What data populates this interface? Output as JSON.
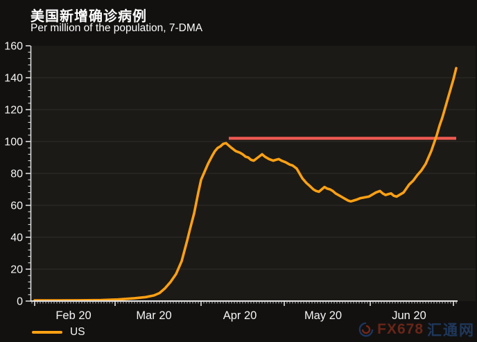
{
  "page": {
    "background": "#121110"
  },
  "header": {
    "title": "美国新增确诊病例",
    "subtitle": "Per million of the population, 7-DMA"
  },
  "legend": {
    "items": [
      {
        "label": "US",
        "color": "#ffa113"
      }
    ]
  },
  "watermark": {
    "text_primary": "FX678",
    "text_secondary": "汇通网"
  },
  "chart_data": {
    "type": "line",
    "title": "美国新增确诊病例",
    "subtitle": "Per million of the population, 7-DMA",
    "xlabel": "",
    "ylabel": "",
    "ylim": [
      0,
      160
    ],
    "y_major_tick_step": 20,
    "y_minor_tick_step": 4,
    "y_tick_labels": [
      "0",
      "20",
      "40",
      "60",
      "80",
      "100",
      "120",
      "140",
      "160"
    ],
    "x_tick_labels": [
      "Feb 20",
      "Mar 20",
      "Apr 20",
      "May 20",
      "Jun 20"
    ],
    "x_label_days": [
      14,
      43,
      74,
      104,
      135
    ],
    "x_month_start_days": [
      0,
      29,
      60,
      90,
      121,
      151
    ],
    "x_range_days": [
      0,
      152
    ],
    "grid": "faint horizontal gridlines at each 20-unit level",
    "legend_position": "bottom-left",
    "colors": {
      "series": "#ffa113",
      "reference": "#ef5a52",
      "axis": "#dcdcdc",
      "grid": "#2a2723",
      "plot_bg": "#1c1a17",
      "page_bg": "#121110",
      "text": "#f5f5f5"
    },
    "reference_line": {
      "value": 102,
      "start_day": 70,
      "end_day": 152,
      "color": "#ef5a52"
    },
    "series": [
      {
        "name": "US",
        "color": "#ffa113",
        "points": [
          [
            0,
            0.4
          ],
          [
            8,
            0.4
          ],
          [
            16,
            0.5
          ],
          [
            24,
            0.6
          ],
          [
            30,
            1
          ],
          [
            36,
            1.8
          ],
          [
            40,
            2.5
          ],
          [
            43,
            3.5
          ],
          [
            45,
            5
          ],
          [
            47,
            8
          ],
          [
            49,
            12
          ],
          [
            51,
            17
          ],
          [
            53,
            25
          ],
          [
            55,
            38
          ],
          [
            56,
            45
          ],
          [
            57.5,
            55
          ],
          [
            59,
            68
          ],
          [
            60,
            76
          ],
          [
            61,
            80
          ],
          [
            62.5,
            86
          ],
          [
            64,
            91
          ],
          [
            65,
            94
          ],
          [
            66,
            96
          ],
          [
            67,
            97
          ],
          [
            68,
            98.5
          ],
          [
            69,
            99
          ],
          [
            70,
            97.5
          ],
          [
            71,
            96
          ],
          [
            72.5,
            94
          ],
          [
            74,
            93
          ],
          [
            75,
            92
          ],
          [
            76,
            90.5
          ],
          [
            77,
            90
          ],
          [
            78,
            88.5
          ],
          [
            79,
            88
          ],
          [
            80.5,
            90
          ],
          [
            82,
            92
          ],
          [
            83,
            90.5
          ],
          [
            84.5,
            89
          ],
          [
            86,
            88
          ],
          [
            87,
            88.5
          ],
          [
            88,
            89
          ],
          [
            89,
            88
          ],
          [
            90.5,
            87
          ],
          [
            92,
            85.5
          ],
          [
            93,
            85
          ],
          [
            94.5,
            83
          ],
          [
            95.5,
            80
          ],
          [
            96.5,
            77
          ],
          [
            98,
            74
          ],
          [
            99,
            72.5
          ],
          [
            100.5,
            70
          ],
          [
            101.5,
            69
          ],
          [
            102.5,
            68.5
          ],
          [
            103.5,
            70
          ],
          [
            104.5,
            71.5
          ],
          [
            105.5,
            70.5
          ],
          [
            106.5,
            70
          ],
          [
            107.5,
            69
          ],
          [
            108.5,
            67.5
          ],
          [
            110,
            66
          ],
          [
            111,
            65
          ],
          [
            112,
            64
          ],
          [
            113,
            63
          ],
          [
            114,
            62.5
          ],
          [
            115,
            63
          ],
          [
            116,
            63.5
          ],
          [
            117.5,
            64.5
          ],
          [
            119,
            65
          ],
          [
            120.5,
            65.5
          ],
          [
            122,
            67
          ],
          [
            123,
            68
          ],
          [
            124.5,
            69
          ],
          [
            125.5,
            67.5
          ],
          [
            126.5,
            66.5
          ],
          [
            127.5,
            67
          ],
          [
            128.5,
            67.5
          ],
          [
            129.5,
            66
          ],
          [
            130.5,
            65.5
          ],
          [
            131.5,
            66.5
          ],
          [
            133,
            68
          ],
          [
            134,
            70.5
          ],
          [
            135,
            73
          ],
          [
            136.5,
            75.5
          ],
          [
            138,
            79
          ],
          [
            139.5,
            82
          ],
          [
            141,
            86
          ],
          [
            142,
            90
          ],
          [
            143,
            94
          ],
          [
            144,
            99
          ],
          [
            145,
            104
          ],
          [
            146,
            110
          ],
          [
            147,
            115
          ],
          [
            148,
            121
          ],
          [
            149,
            127
          ],
          [
            150,
            133
          ],
          [
            151,
            139
          ],
          [
            152,
            146
          ]
        ]
      }
    ]
  }
}
